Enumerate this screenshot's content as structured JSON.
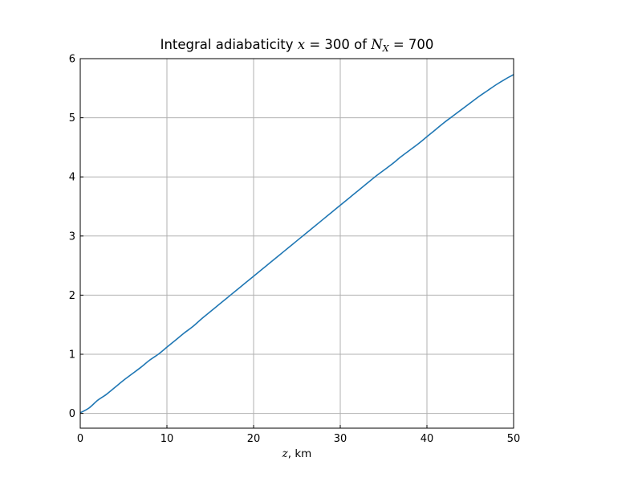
{
  "chart_data": {
    "type": "line",
    "title": "Integral adiabaticity x = 300 of N_X = 700",
    "title_parts": {
      "prefix": "Integral adiabaticity ",
      "x_symbol": "x",
      "x_equals": " = 300 of ",
      "n_symbol": "N",
      "n_subscript": "X",
      "n_equals": " = 700"
    },
    "xlabel": "z, km",
    "xlabel_parts": {
      "symbol": "z",
      "unit": ", km"
    },
    "ylabel": "",
    "xlim": [
      0,
      50
    ],
    "ylim": [
      -0.25,
      6
    ],
    "xticks": [
      0,
      10,
      20,
      30,
      40,
      50
    ],
    "xtick_labels": [
      "0",
      "10",
      "20",
      "30",
      "40",
      "50"
    ],
    "yticks": [
      0,
      1,
      2,
      3,
      4,
      5,
      6
    ],
    "ytick_labels": [
      "0",
      "1",
      "2",
      "3",
      "4",
      "5",
      "6"
    ],
    "grid": true,
    "series": [
      {
        "color": "#1f77b4",
        "x": [
          0,
          1,
          2,
          3,
          4,
          5,
          6,
          7,
          8,
          9,
          10,
          11,
          12,
          13,
          14,
          15,
          16,
          17,
          18,
          19,
          20,
          21,
          22,
          23,
          24,
          25,
          26,
          27,
          28,
          29,
          30,
          31,
          32,
          33,
          34,
          35,
          36,
          37,
          38,
          39,
          40,
          41,
          42,
          43,
          44,
          45,
          46,
          47,
          48,
          49,
          50
        ],
        "y": [
          0.01,
          0.09,
          0.22,
          0.32,
          0.44,
          0.56,
          0.67,
          0.78,
          0.9,
          1.0,
          1.12,
          1.24,
          1.36,
          1.47,
          1.6,
          1.72,
          1.84,
          1.96,
          2.08,
          2.2,
          2.32,
          2.44,
          2.56,
          2.68,
          2.8,
          2.92,
          3.04,
          3.16,
          3.28,
          3.4,
          3.52,
          3.64,
          3.76,
          3.88,
          4.0,
          4.11,
          4.22,
          4.34,
          4.45,
          4.56,
          4.68,
          4.8,
          4.92,
          5.03,
          5.14,
          5.25,
          5.36,
          5.46,
          5.56,
          5.65,
          5.73
        ]
      }
    ]
  },
  "colors": {
    "line": "#1f77b4",
    "grid": "#b0b0b0",
    "axes": "#000000"
  }
}
